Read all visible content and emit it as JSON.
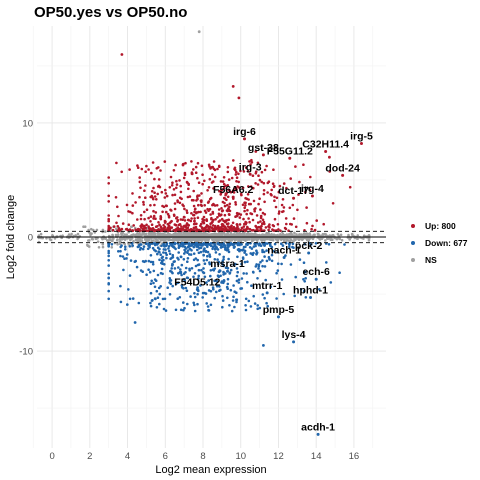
{
  "chart_data": {
    "type": "scatter",
    "title": "OP50.yes vs OP50.no",
    "xlabel": "Log2 mean expression",
    "ylabel": "Log2 fold change",
    "xlim": [
      -0.8,
      17.7
    ],
    "ylim": [
      -18.5,
      18.5
    ],
    "x_ticks": [
      0,
      2,
      4,
      6,
      8,
      10,
      12,
      14,
      16
    ],
    "y_ticks": [
      -10,
      0,
      10
    ],
    "fold_change_threshold_lines": [
      -0.5,
      0.5
    ],
    "grid": true,
    "legend": {
      "placement": "right",
      "entries": [
        {
          "label": "Up: 800",
          "color": "#b2182b"
        },
        {
          "label": "Down: 677",
          "color": "#2166ac"
        },
        {
          "label": "NS",
          "color": "#a0a0a0"
        }
      ]
    },
    "colors": {
      "up": "#b2182b",
      "down": "#2166ac",
      "ns": "#a0a0a0"
    },
    "labeled_genes": [
      {
        "name": "irg-6",
        "x": 10.2,
        "y": 8.6
      },
      {
        "name": "irg-5",
        "x": 16.4,
        "y": 8.2
      },
      {
        "name": "C32H11.4",
        "x": 14.5,
        "y": 7.5
      },
      {
        "name": "gst-38",
        "x": 11.2,
        "y": 7.2
      },
      {
        "name": "F55G11.2",
        "x": 12.6,
        "y": 6.9
      },
      {
        "name": "irg-3",
        "x": 10.5,
        "y": 5.5
      },
      {
        "name": "dod-24",
        "x": 15.4,
        "y": 5.4
      },
      {
        "name": "irg-4",
        "x": 13.8,
        "y": 3.6
      },
      {
        "name": "F56A6.2",
        "x": 9.6,
        "y": 3.5
      },
      {
        "name": "dct-17",
        "x": 12.8,
        "y": 3.4
      },
      {
        "name": "pck-2",
        "x": 13.6,
        "y": -1.4
      },
      {
        "name": "nach-1",
        "x": 12.3,
        "y": -1.8
      },
      {
        "name": "msra-1",
        "x": 9.3,
        "y": -3.0
      },
      {
        "name": "ech-6",
        "x": 14.0,
        "y": -3.7
      },
      {
        "name": "F54D5.12",
        "x": 7.7,
        "y": -4.6
      },
      {
        "name": "mtrr-1",
        "x": 11.4,
        "y": -4.9
      },
      {
        "name": "hphd-1",
        "x": 13.7,
        "y": -5.3
      },
      {
        "name": "pmp-5",
        "x": 12.0,
        "y": -7.0
      },
      {
        "name": "lys-4",
        "x": 12.8,
        "y": -9.2
      },
      {
        "name": "acdh-1",
        "x": 14.1,
        "y": -17.3
      }
    ],
    "unlabeled_outliers": [
      {
        "x": 7.8,
        "y": 18.0,
        "group": "ns"
      },
      {
        "x": 3.7,
        "y": 16.0,
        "group": "up"
      },
      {
        "x": 9.6,
        "y": 13.2,
        "group": "up"
      },
      {
        "x": 9.9,
        "y": 12.2,
        "group": "up"
      },
      {
        "x": 10.8,
        "y": 7.5,
        "group": "up"
      },
      {
        "x": 14.7,
        "y": 7.0,
        "group": "up"
      },
      {
        "x": 11.2,
        "y": -9.5,
        "group": "down"
      },
      {
        "x": 4.4,
        "y": -7.5,
        "group": "down"
      }
    ]
  }
}
